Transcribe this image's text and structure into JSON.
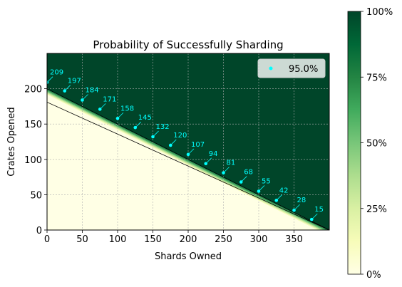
{
  "chart_data": {
    "type": "heatmap",
    "title": "Probability of Successfully Sharding",
    "xlabel": "Shards Owned",
    "ylabel": "Crates Opened",
    "xlim": [
      0,
      400
    ],
    "ylim": [
      0,
      250
    ],
    "x_ticks": [
      "0",
      "50",
      "100",
      "150",
      "200",
      "250",
      "300",
      "350"
    ],
    "y_ticks": [
      "0",
      "50",
      "100",
      "150",
      "200"
    ],
    "grid": true,
    "legend": {
      "position": "top-right",
      "label": "95.0%",
      "marker_color": "#00ffff"
    },
    "colorbar": {
      "ticks": [
        "0%",
        "25%",
        "50%",
        "75%",
        "100%"
      ],
      "colors": [
        "#ffffe5",
        "#f7fcb9",
        "#d9f0a3",
        "#addd8e",
        "#78c679",
        "#41ab5d",
        "#238443",
        "#006837",
        "#004529"
      ]
    },
    "upper_line": {
      "x": [
        0,
        400
      ],
      "y": [
        200,
        0
      ]
    },
    "lower_line": {
      "x": [
        0,
        400
      ],
      "y": [
        181,
        0
      ]
    },
    "series": [
      {
        "name": "95.0%",
        "points": [
          {
            "x": 0,
            "y": 209,
            "label": "209"
          },
          {
            "x": 25,
            "y": 197,
            "label": "197"
          },
          {
            "x": 50,
            "y": 184,
            "label": "184"
          },
          {
            "x": 75,
            "y": 171,
            "label": "171"
          },
          {
            "x": 100,
            "y": 158,
            "label": "158"
          },
          {
            "x": 125,
            "y": 145,
            "label": "145"
          },
          {
            "x": 150,
            "y": 132,
            "label": "132"
          },
          {
            "x": 175,
            "y": 120,
            "label": "120"
          },
          {
            "x": 200,
            "y": 107,
            "label": "107"
          },
          {
            "x": 225,
            "y": 94,
            "label": "94"
          },
          {
            "x": 250,
            "y": 81,
            "label": "81"
          },
          {
            "x": 275,
            "y": 68,
            "label": "68"
          },
          {
            "x": 300,
            "y": 55,
            "label": "55"
          },
          {
            "x": 325,
            "y": 42,
            "label": "42"
          },
          {
            "x": 350,
            "y": 28,
            "label": "28"
          },
          {
            "x": 375,
            "y": 15,
            "label": "15"
          }
        ]
      }
    ]
  }
}
